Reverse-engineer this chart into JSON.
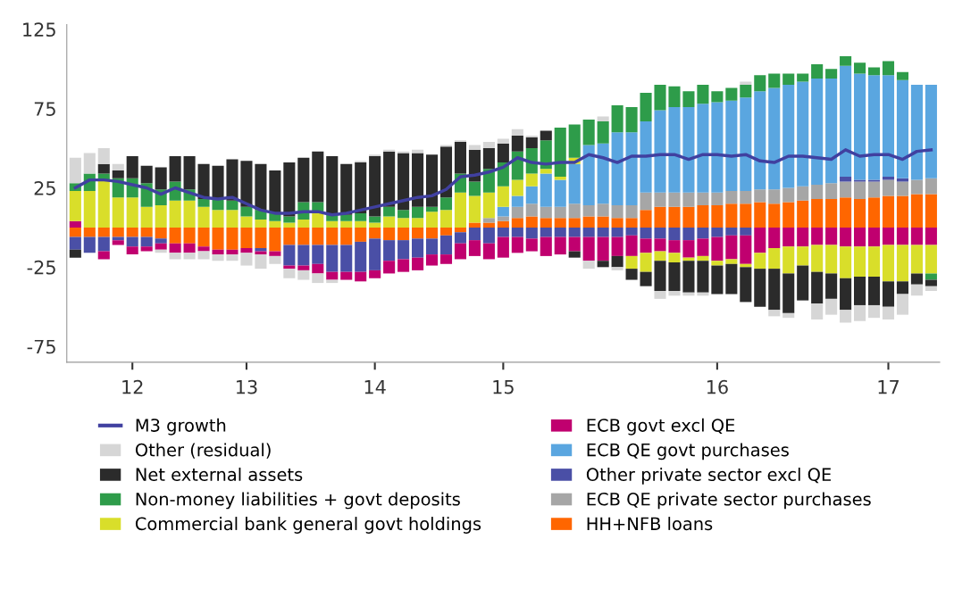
{
  "chart_data": {
    "type": "bar",
    "stacked": true,
    "categories": [
      null,
      null,
      null,
      null,
      "12",
      null,
      null,
      null,
      null,
      null,
      null,
      null,
      "13",
      null,
      null,
      null,
      null,
      null,
      null,
      null,
      null,
      "14",
      null,
      null,
      null,
      null,
      null,
      null,
      null,
      null,
      "15",
      null,
      null,
      null,
      null,
      null,
      null,
      null,
      null,
      null,
      null,
      null,
      null,
      null,
      null,
      "16",
      null,
      null,
      null,
      null,
      null,
      null,
      null,
      null,
      null,
      null,
      null,
      "17",
      null,
      null,
      null
    ],
    "ylim": [
      -85,
      128
    ],
    "yticks": [
      125,
      75,
      25,
      -25,
      -75
    ],
    "grid": false,
    "legend": "bottom",
    "series": [
      {
        "name": "HH+NFB loans",
        "color": "#ff6600",
        "values": [
          -6,
          -6,
          -6,
          -6,
          -6,
          -6,
          -7,
          -10,
          -10,
          -12,
          -14,
          -14,
          -13,
          -13,
          -15,
          -11,
          -11,
          -11,
          -11,
          -11,
          -9,
          -7,
          -8,
          -8,
          -7,
          -7,
          -5,
          -3,
          3,
          3,
          4,
          6,
          7,
          6,
          6,
          6,
          7,
          7,
          6,
          6,
          11,
          13,
          13,
          13,
          14,
          14,
          15,
          15,
          16,
          15,
          16,
          17,
          18,
          18,
          19,
          18,
          19,
          20,
          20,
          21,
          21
        ]
      },
      {
        "name": "ECB QE private sector purchases",
        "color": "#a6a6a6",
        "values": [
          0,
          0,
          0,
          0,
          0,
          0,
          0,
          0,
          0,
          0,
          0,
          0,
          0,
          0,
          0,
          0,
          0,
          0,
          0,
          0,
          0,
          0,
          0,
          0,
          0,
          0,
          0,
          0,
          0,
          3,
          3,
          7,
          8,
          7,
          7,
          9,
          7,
          8,
          8,
          8,
          11,
          9,
          9,
          9,
          8,
          8,
          8,
          8,
          8,
          9,
          9,
          9,
          9,
          10,
          10,
          11,
          10,
          10,
          9,
          9,
          10
        ]
      },
      {
        "name": "Other private sector excl QE",
        "color": "#4a4fa6",
        "values": [
          -8,
          -10,
          -9,
          -2,
          -6,
          -6,
          -3,
          0,
          0,
          0,
          0,
          0,
          0,
          -2,
          0,
          -13,
          -13,
          -12,
          -17,
          -17,
          -19,
          -20,
          -13,
          -12,
          -12,
          -10,
          -12,
          -7,
          -8,
          -10,
          -6,
          -6,
          -7,
          -6,
          -6,
          -6,
          -6,
          -6,
          -6,
          -5,
          -7,
          -7,
          -8,
          -8,
          -7,
          -6,
          -5,
          -5,
          0,
          0,
          0,
          0,
          0,
          0,
          3,
          1,
          1,
          2,
          2,
          0,
          0
        ]
      },
      {
        "name": "ECB QE govt purchases",
        "color": "#5aa6e0",
        "values": [
          0,
          0,
          0,
          0,
          0,
          0,
          0,
          0,
          0,
          0,
          0,
          0,
          0,
          0,
          0,
          0,
          0,
          0,
          0,
          0,
          0,
          0,
          0,
          0,
          0,
          0,
          0,
          0,
          0,
          0,
          6,
          7,
          11,
          21,
          17,
          25,
          38,
          38,
          46,
          46,
          45,
          52,
          54,
          54,
          56,
          57,
          57,
          59,
          62,
          64,
          65,
          66,
          67,
          66,
          70,
          67,
          66,
          64,
          62,
          60,
          59
        ]
      },
      {
        "name": "ECB govt excl QE",
        "color": "#c0006f",
        "values": [
          4,
          0,
          -5,
          -3,
          -5,
          -3,
          -4,
          -6,
          -6,
          -3,
          -3,
          -3,
          -3,
          -2,
          -3,
          -2,
          -3,
          -6,
          -5,
          -5,
          -6,
          -5,
          -8,
          -8,
          -8,
          -7,
          -6,
          -10,
          -10,
          -10,
          -13,
          -10,
          -8,
          -12,
          -11,
          -9,
          -15,
          -15,
          -12,
          -13,
          -9,
          -8,
          -8,
          -11,
          -11,
          -15,
          -15,
          -18,
          -16,
          -13,
          -12,
          -12,
          -11,
          -11,
          -12,
          -12,
          -12,
          -11,
          -11,
          -11,
          -11
        ]
      },
      {
        "name": "Commercial bank general govt holdings",
        "color": "#d9de2a",
        "values": [
          19,
          23,
          30,
          19,
          19,
          13,
          14,
          17,
          17,
          13,
          11,
          11,
          7,
          5,
          4,
          3,
          5,
          9,
          4,
          4,
          4,
          3,
          7,
          6,
          6,
          10,
          11,
          22,
          17,
          16,
          13,
          10,
          8,
          3,
          2,
          4,
          0,
          0,
          0,
          -8,
          -12,
          -6,
          -6,
          -2,
          -3,
          -3,
          -3,
          -2,
          -10,
          -13,
          -17,
          -12,
          -17,
          -18,
          -20,
          -19,
          -19,
          -23,
          -23,
          -18,
          -18
        ]
      },
      {
        "name": "Non-money liabilities + govt deposits",
        "color": "#2e9c4a",
        "values": [
          5,
          11,
          4,
          12,
          12,
          15,
          10,
          12,
          7,
          5,
          7,
          6,
          6,
          6,
          5,
          4,
          11,
          7,
          5,
          4,
          5,
          4,
          6,
          5,
          7,
          3,
          8,
          12,
          9,
          15,
          15,
          18,
          16,
          18,
          31,
          21,
          16,
          14,
          17,
          16,
          18,
          16,
          13,
          10,
          12,
          7,
          8,
          8,
          10,
          9,
          7,
          5,
          9,
          6,
          6,
          7,
          5,
          9,
          5,
          0,
          -4
        ]
      },
      {
        "name": "Net external assets",
        "color": "#2b2b2b",
        "values": [
          -5,
          0,
          6,
          5,
          14,
          11,
          14,
          16,
          21,
          22,
          21,
          26,
          29,
          29,
          27,
          34,
          28,
          32,
          36,
          32,
          32,
          38,
          35,
          36,
          34,
          33,
          32,
          20,
          20,
          13,
          12,
          10,
          7,
          6,
          0,
          -4,
          0,
          -4,
          -7,
          -7,
          -9,
          -19,
          -18,
          -20,
          -20,
          -18,
          -19,
          -22,
          -24,
          -26,
          -25,
          -22,
          -20,
          -16,
          -20,
          -18,
          -18,
          -16,
          -8,
          -7,
          -4
        ]
      },
      {
        "name": "Other (residual)",
        "color": "#d6d6d6",
        "values": [
          16,
          13,
          10,
          4,
          0,
          0,
          -2,
          -4,
          -4,
          -5,
          -4,
          -4,
          -8,
          -9,
          -5,
          -6,
          -6,
          -6,
          -2,
          0,
          1,
          1,
          1,
          1,
          2,
          0,
          1,
          1,
          3,
          4,
          3,
          4,
          1,
          0,
          0,
          0,
          -5,
          3,
          -2,
          0,
          0,
          -5,
          -3,
          -2,
          -2,
          0,
          0,
          2,
          0,
          -4,
          -3,
          0,
          -10,
          -10,
          -8,
          -10,
          -8,
          -8,
          -13,
          -7,
          -3
        ]
      },
      {
        "name": "M3 growth",
        "type": "line",
        "color": "#4040a0",
        "values": [
          25,
          30,
          30,
          29,
          27,
          25,
          21,
          25,
          22,
          19,
          18,
          19,
          15,
          11,
          9,
          9,
          10,
          10,
          8,
          9,
          11,
          13,
          15,
          17,
          19,
          20,
          24,
          32,
          33,
          35,
          38,
          44,
          41,
          40,
          41,
          41,
          46,
          44,
          41,
          45,
          45,
          46,
          46,
          43,
          46,
          46,
          45,
          46,
          42,
          41,
          45,
          45,
          44,
          43,
          49,
          45,
          46,
          46,
          43,
          48,
          49
        ]
      }
    ]
  }
}
